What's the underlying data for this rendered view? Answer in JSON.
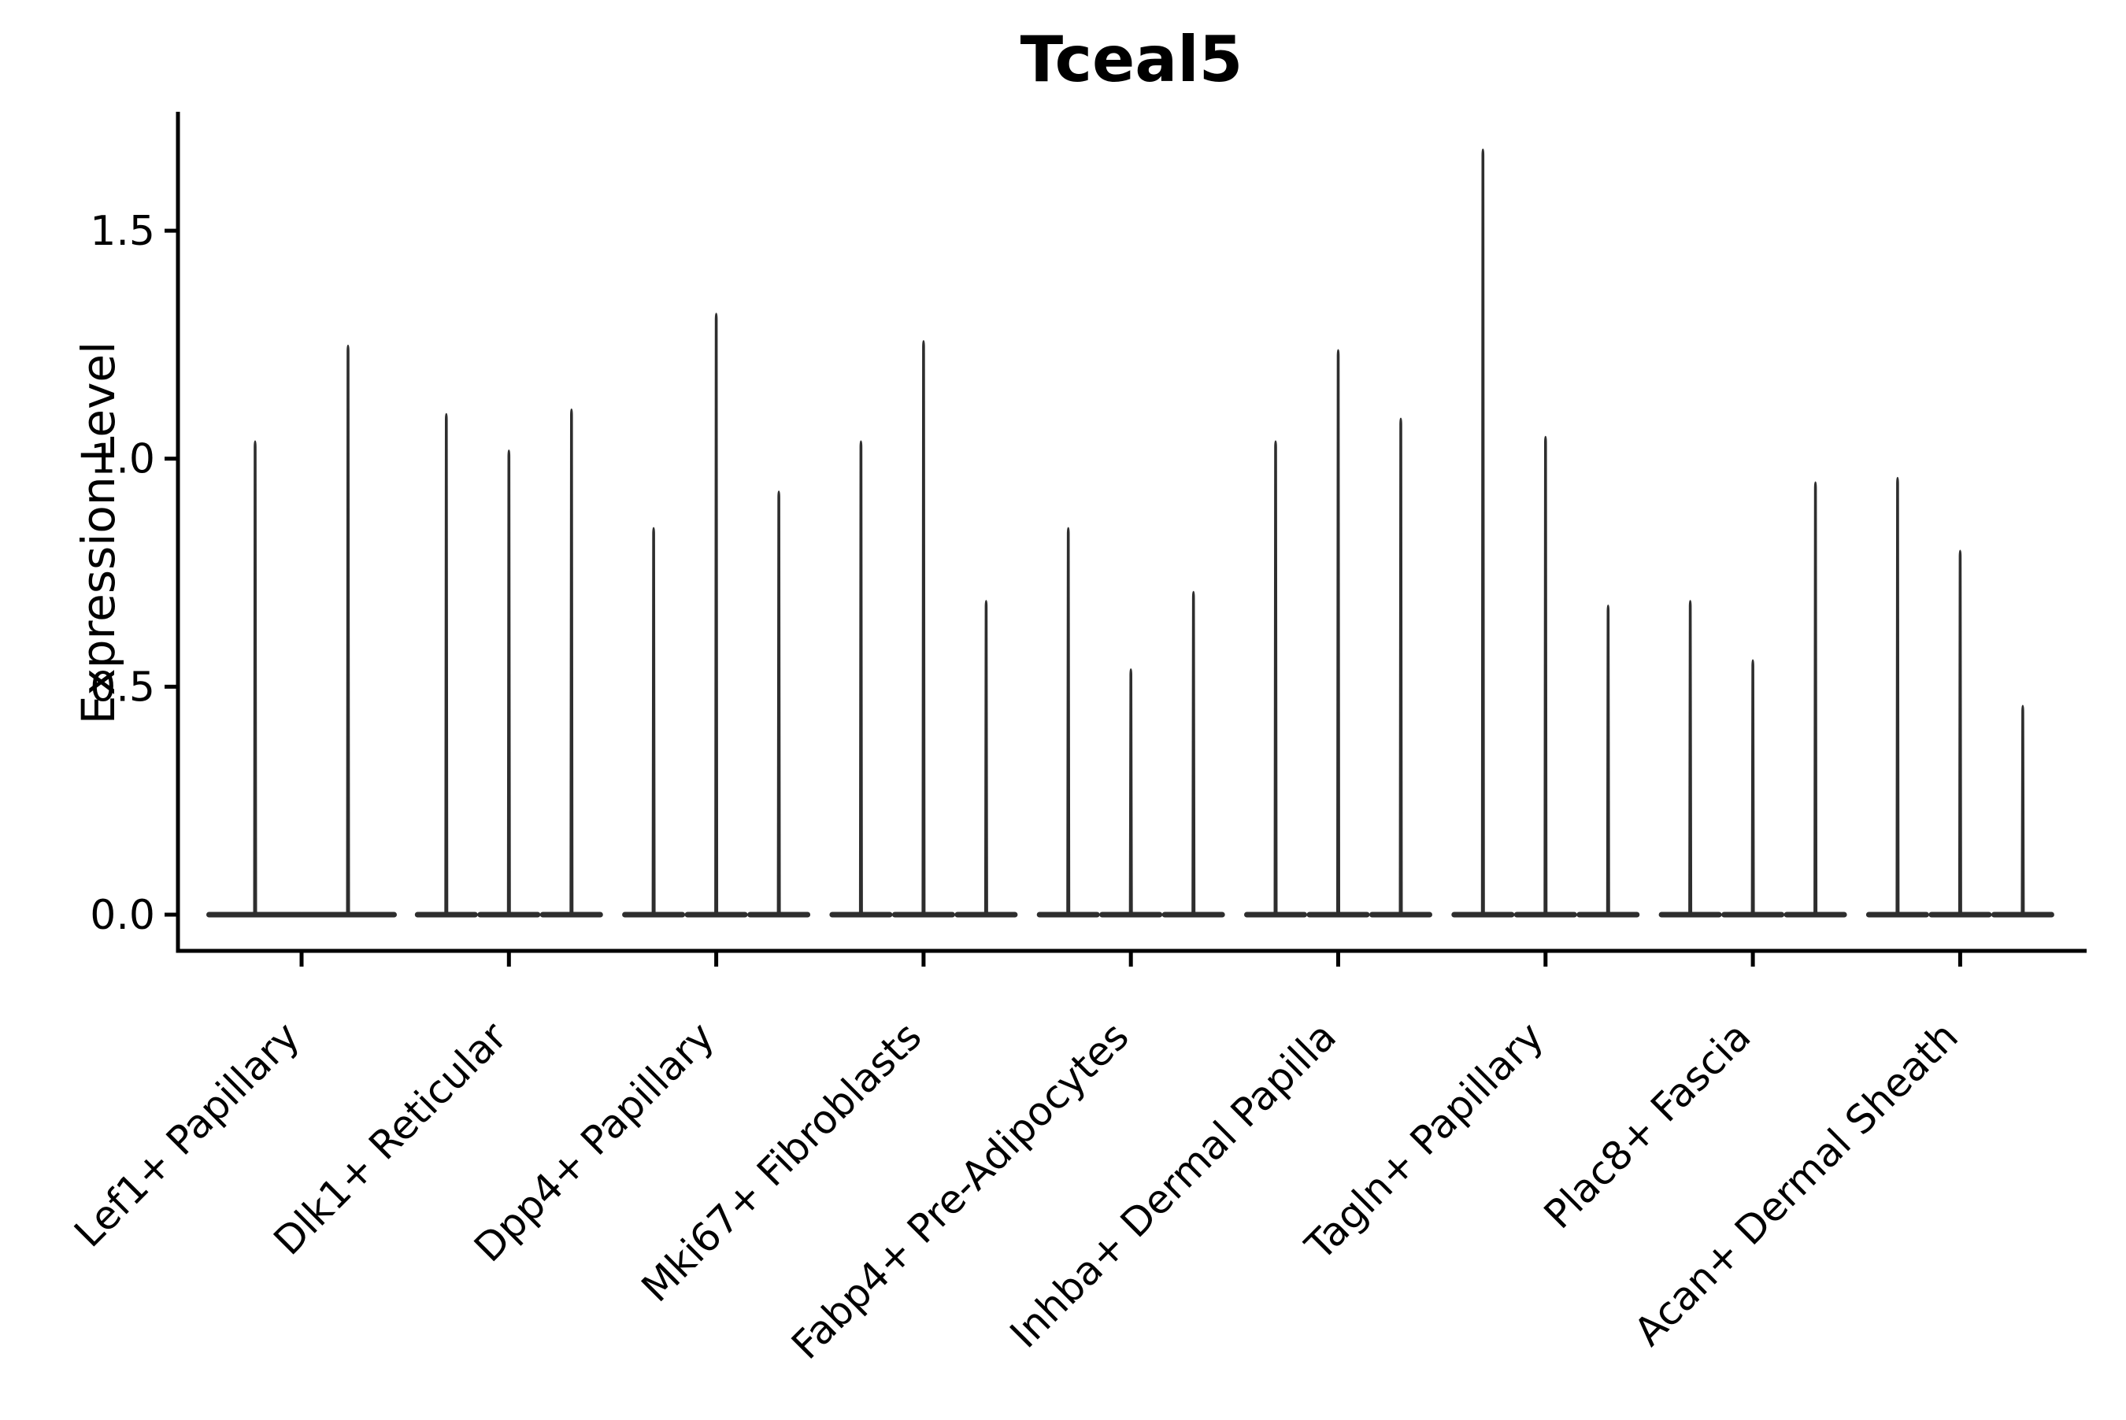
{
  "figure": {
    "title": "Tceal5"
  },
  "y_axis": {
    "label": "Expression Level",
    "tick_labels": [
      "0.0",
      "0.5",
      "1.0",
      "1.5"
    ],
    "tick_values": [
      0.0,
      0.5,
      1.0,
      1.5
    ]
  },
  "chart_data": {
    "type": "violin",
    "title": "Tceal5",
    "xlabel": "",
    "ylabel": "Expression Level",
    "ylim": [
      -0.08,
      1.76
    ],
    "grid": false,
    "legend": "none",
    "note": "Needle-shaped violins: dense flat base at expression 0 with a thin spike up to the max expression value; 2 violins in first category, 3 in the others.",
    "categories": [
      "Lef1+ Papillary",
      "Dlk1+ Reticular",
      "Dpp4+ Papillary",
      "Mki67+ Fibroblasts",
      "Fabp4+ Pre-Adipocytes",
      "Inhba+ Dermal Papilla",
      "Tagln+ Papillary",
      "Plac8+ Fascia",
      "Acan+ Dermal Sheath"
    ],
    "violin_max_values_per_category": [
      [
        1.04,
        1.25
      ],
      [
        1.1,
        1.02,
        1.11
      ],
      [
        0.85,
        1.32,
        0.93
      ],
      [
        1.04,
        1.26,
        0.69
      ],
      [
        0.85,
        0.54,
        0.71
      ],
      [
        1.04,
        1.24,
        1.09
      ],
      [
        1.68,
        1.05,
        0.68
      ],
      [
        0.69,
        0.56,
        0.95
      ],
      [
        0.96,
        0.8,
        0.46
      ]
    ],
    "violin_min_value": 0.0,
    "violin_color": "#2e2e2e",
    "axis_color": "#000000"
  }
}
